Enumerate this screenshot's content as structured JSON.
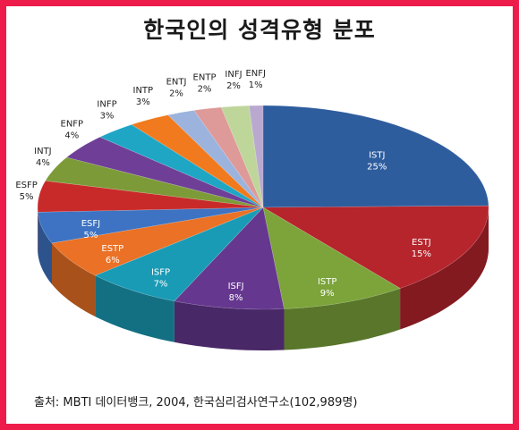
{
  "chart_data": {
    "type": "pie",
    "title": "한국인의 성격유형 분포",
    "categories": [
      "ISTJ",
      "ESTJ",
      "ISTP",
      "ISFJ",
      "ISFP",
      "ESTP",
      "ESFJ",
      "ESFP",
      "INTJ",
      "ENFP",
      "INFP",
      "INTP",
      "ENTJ",
      "ENTP",
      "INFJ",
      "ENFJ"
    ],
    "values": [
      25,
      15,
      9,
      8,
      7,
      6,
      5,
      5,
      4,
      4,
      3,
      3,
      2,
      2,
      2,
      1
    ],
    "value_labels": [
      "25%",
      "15%",
      "9%",
      "8%",
      "7%",
      "6%",
      "5%",
      "5%",
      "4%",
      "4%",
      "3%",
      "3%",
      "2%",
      "2%",
      "2%",
      "1%"
    ],
    "colors": [
      "#2e5d9e",
      "#b6242c",
      "#7ca43a",
      "#65378f",
      "#1a9bb5",
      "#ea7125",
      "#3d73c2",
      "#c82a2a",
      "#7c9b38",
      "#6f3f97",
      "#1fa6c5",
      "#f07a1d",
      "#9bb3dd",
      "#dd9a98",
      "#bfd69b",
      "#b9a9d0"
    ],
    "start_angle_deg": 0,
    "direction": "clockwise",
    "style": "3d-tilted",
    "legend": "none"
  },
  "source_note": "출처: MBTI 데이터뱅크, 2004, 한국심리검사연구소(102,989명)"
}
